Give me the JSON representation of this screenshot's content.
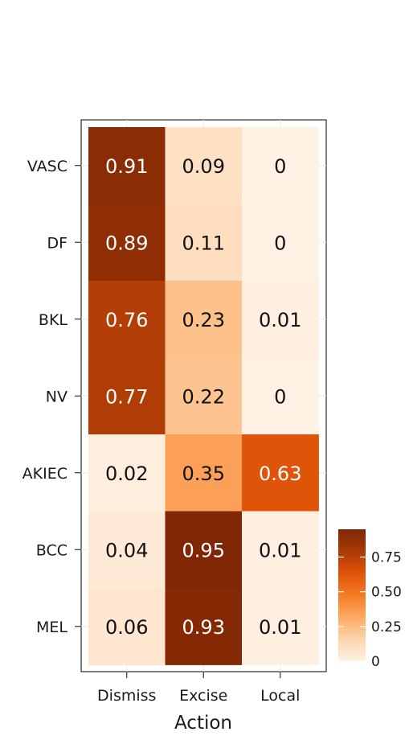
{
  "chart_data": {
    "type": "heatmap",
    "title": "",
    "xlabel": "Action",
    "ylabel": "",
    "x_categories": [
      "Dismiss",
      "Excise",
      "Local"
    ],
    "y_categories": [
      "VASC",
      "DF",
      "BKL",
      "NV",
      "AKIEC",
      "BCC",
      "MEL"
    ],
    "values": [
      [
        0.91,
        0.09,
        0
      ],
      [
        0.89,
        0.11,
        0
      ],
      [
        0.76,
        0.23,
        0.01
      ],
      [
        0.77,
        0.22,
        0
      ],
      [
        0.02,
        0.35,
        0.63
      ],
      [
        0.04,
        0.95,
        0.01
      ],
      [
        0.06,
        0.93,
        0.01
      ]
    ],
    "value_labels": [
      [
        "0.91",
        "0.09",
        "0"
      ],
      [
        "0.89",
        "0.11",
        "0"
      ],
      [
        "0.76",
        "0.23",
        "0.01"
      ],
      [
        "0.77",
        "0.22",
        "0"
      ],
      [
        "0.02",
        "0.35",
        "0.63"
      ],
      [
        "0.04",
        "0.95",
        "0.01"
      ],
      [
        "0.06",
        "0.93",
        "0.01"
      ]
    ],
    "color_scale": {
      "range": [
        0,
        0.95
      ],
      "colors": [
        "#fff1e4",
        "#fdd5ae",
        "#fdaa63",
        "#f47b24",
        "#e05309",
        "#a93a05",
        "#7f2704"
      ],
      "legend_ticks": [
        0,
        0.25,
        0.5,
        0.75
      ],
      "legend_tick_labels": [
        "0",
        "0.25",
        "0.50",
        "0.75"
      ]
    },
    "grid": true,
    "legend_position": "right"
  }
}
